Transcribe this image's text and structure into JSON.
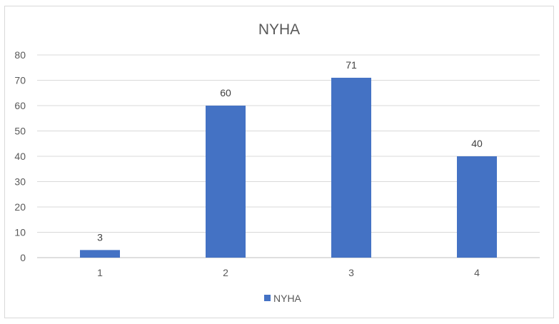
{
  "chart_data": {
    "type": "bar",
    "title": "NYHA",
    "categories": [
      "1",
      "2",
      "3",
      "4"
    ],
    "series": [
      {
        "name": "NYHA",
        "values": [
          3,
          60,
          71,
          40
        ],
        "color": "#4472c4"
      }
    ],
    "ylim": [
      0,
      80
    ],
    "yticks": [
      0,
      10,
      20,
      30,
      40,
      50,
      60,
      70,
      80
    ],
    "data_labels": [
      "3",
      "60",
      "71",
      "40"
    ],
    "grid": true,
    "legend_position": "bottom",
    "gridline_color": "#d9d9d9"
  }
}
